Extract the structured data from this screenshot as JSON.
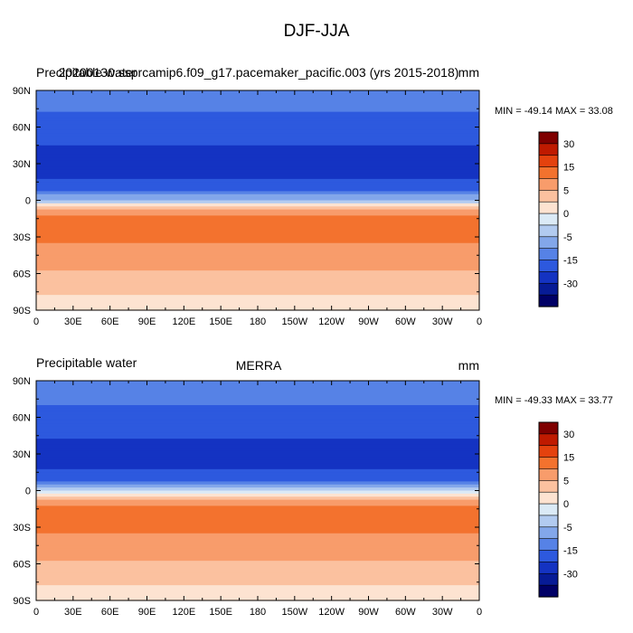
{
  "figure": {
    "title": "DJF-JJA"
  },
  "panels": [
    {
      "left_label": "Precipitable water",
      "center_label": "20200130.ssprcamip6.f09_g17.pacemaker_pacific.003 (yrs 2015-2018)",
      "units": "mm",
      "stats": "MIN = -49.14 MAX =  33.08"
    },
    {
      "left_label": "Precipitable water",
      "center_label": "MERRA",
      "units": "mm",
      "stats": "MIN = -49.33 MAX =  33.77"
    }
  ],
  "colorbar": {
    "labels": [
      "30",
      "15",
      "5",
      "0",
      "-5",
      "-15",
      "-30"
    ],
    "colors": [
      "#7f0000",
      "#bf1a00",
      "#e4420e",
      "#f3722e",
      "#f89c6b",
      "#fbc19f",
      "#fde3d1",
      "#dbeaf6",
      "#b2cbf0",
      "#83a7ea",
      "#5682e6",
      "#2d59de",
      "#1433c2",
      "#071b96",
      "#000066"
    ]
  },
  "axes": {
    "lat_ticks": [
      "90N",
      "60N",
      "30N",
      "0",
      "30S",
      "60S",
      "90S"
    ],
    "lon_ticks": [
      "0",
      "30E",
      "60E",
      "90E",
      "120E",
      "150E",
      "180",
      "150W",
      "120W",
      "90W",
      "60W",
      "30W",
      "0"
    ]
  },
  "chart_data": [
    {
      "type": "heatmap",
      "title": "20200130.ssprcamip6.f09_g17.pacemaker_pacific.003 (yrs 2015-2018)",
      "variable": "Precipitable water",
      "units": "mm",
      "season_difference": "DJF-JJA",
      "x_range": [
        0,
        360
      ],
      "y_range": [
        -90,
        90
      ],
      "min": -49.14,
      "max": 33.08,
      "zonal_profile": {
        "lat": [
          80,
          60,
          45,
          30,
          20,
          10,
          3,
          -5,
          -15,
          -25,
          -35,
          -50,
          -70,
          -85
        ],
        "value": [
          -12,
          -20,
          -25,
          -30,
          -28,
          -18,
          -8,
          3,
          12,
          14,
          10,
          6,
          3,
          1
        ]
      }
    },
    {
      "type": "heatmap",
      "title": "MERRA",
      "variable": "Precipitable water",
      "units": "mm",
      "season_difference": "DJF-JJA",
      "x_range": [
        0,
        360
      ],
      "y_range": [
        -90,
        90
      ],
      "min": -49.33,
      "max": 33.77,
      "zonal_profile": {
        "lat": [
          80,
          60,
          45,
          30,
          20,
          10,
          3,
          -5,
          -15,
          -25,
          -35,
          -50,
          -70,
          -85
        ],
        "value": [
          -10,
          -19,
          -24,
          -29,
          -27,
          -17,
          -7,
          3,
          12,
          14,
          10,
          6,
          3,
          1
        ]
      }
    }
  ]
}
